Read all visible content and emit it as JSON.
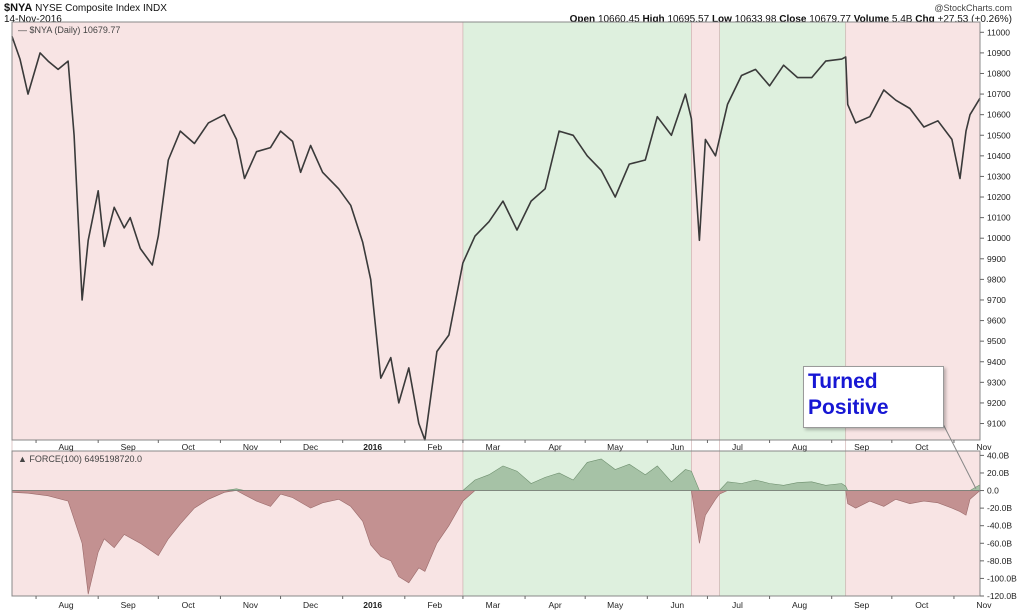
{
  "header": {
    "symbol": "$NYA",
    "name": "NYSE Composite Index",
    "exchange": "INDX",
    "date": "14-Nov-2016",
    "credit": "@StockCharts.com",
    "open_label": "Open",
    "open": "10660.45",
    "high_label": "High",
    "high": "10695.57",
    "low_label": "Low",
    "low": "10633.98",
    "close_label": "Close",
    "close": "10679.77",
    "volume_label": "Volume",
    "volume": "5.4B",
    "chg_label": "Chg",
    "chg": "+27.53 (+0.26%)"
  },
  "annotation": {
    "line1": "Turned",
    "line2": "Positive"
  },
  "colors": {
    "red_band": "#f8e4e4",
    "green_band": "#def0de",
    "price_line": "#3a3a3a",
    "force_neg": "#c39191",
    "force_pos": "#a6c2a6",
    "callout_text": "#1717d4"
  },
  "chart_data": [
    {
      "type": "line",
      "legend": "$NYA (Daily) 10679.77",
      "x_tick_labels": [
        "Aug",
        "Sep",
        "Oct",
        "Nov",
        "Dec",
        "2016",
        "Feb",
        "Mar",
        "Apr",
        "May",
        "Jun",
        "Jul",
        "Aug",
        "Sep",
        "Oct",
        "Nov"
      ],
      "y_ticks": [
        9100,
        9200,
        9300,
        9400,
        9500,
        9600,
        9700,
        9800,
        9900,
        10000,
        10100,
        10200,
        10300,
        10400,
        10500,
        10600,
        10700,
        10800,
        10900,
        11000
      ],
      "ylim": [
        9020,
        11050
      ],
      "date_range": [
        "2015-07-20",
        "2016-11-14"
      ],
      "shaded_regimes": [
        {
          "start": "2015-07-20",
          "end": "2016-03-01",
          "regime": "negative"
        },
        {
          "start": "2016-03-01",
          "end": "2016-06-23",
          "regime": "positive"
        },
        {
          "start": "2016-06-23",
          "end": "2016-07-07",
          "regime": "negative"
        },
        {
          "start": "2016-07-07",
          "end": "2016-09-08",
          "regime": "positive"
        },
        {
          "start": "2016-09-08",
          "end": "2016-11-14",
          "regime": "negative"
        }
      ],
      "series": [
        {
          "x": [
            "2015-07-20",
            "2015-07-24",
            "2015-07-28",
            "2015-08-03",
            "2015-08-07",
            "2015-08-12",
            "2015-08-17",
            "2015-08-20",
            "2015-08-24",
            "2015-08-27",
            "2015-09-01",
            "2015-09-04",
            "2015-09-09",
            "2015-09-14",
            "2015-09-17",
            "2015-09-22",
            "2015-09-28",
            "2015-10-01",
            "2015-10-06",
            "2015-10-12",
            "2015-10-19",
            "2015-10-26",
            "2015-11-03",
            "2015-11-09",
            "2015-11-13",
            "2015-11-19",
            "2015-11-26",
            "2015-12-01",
            "2015-12-07",
            "2015-12-11",
            "2015-12-16",
            "2015-12-22",
            "2015-12-30",
            "2016-01-05",
            "2016-01-11",
            "2016-01-15",
            "2016-01-20",
            "2016-01-25",
            "2016-01-29",
            "2016-02-03",
            "2016-02-08",
            "2016-02-11",
            "2016-02-17",
            "2016-02-23",
            "2016-03-01",
            "2016-03-07",
            "2016-03-14",
            "2016-03-21",
            "2016-03-28",
            "2016-04-04",
            "2016-04-11",
            "2016-04-18",
            "2016-04-25",
            "2016-05-02",
            "2016-05-09",
            "2016-05-16",
            "2016-05-23",
            "2016-05-31",
            "2016-06-06",
            "2016-06-13",
            "2016-06-20",
            "2016-06-23",
            "2016-06-27",
            "2016-06-30",
            "2016-07-05",
            "2016-07-11",
            "2016-07-18",
            "2016-07-25",
            "2016-08-01",
            "2016-08-08",
            "2016-08-15",
            "2016-08-22",
            "2016-08-29",
            "2016-09-06",
            "2016-09-08",
            "2016-09-09",
            "2016-09-13",
            "2016-09-20",
            "2016-09-27",
            "2016-10-03",
            "2016-10-10",
            "2016-10-17",
            "2016-10-24",
            "2016-10-31",
            "2016-11-04",
            "2016-11-07",
            "2016-11-09",
            "2016-11-14"
          ],
          "y": [
            10980,
            10870,
            10700,
            10900,
            10860,
            10820,
            10860,
            10500,
            9700,
            9990,
            10230,
            9960,
            10150,
            10050,
            10100,
            9950,
            9870,
            10010,
            10380,
            10520,
            10460,
            10560,
            10600,
            10480,
            10290,
            10420,
            10440,
            10520,
            10470,
            10320,
            10450,
            10320,
            10240,
            10160,
            9980,
            9800,
            9320,
            9420,
            9200,
            9370,
            9100,
            9020,
            9450,
            9530,
            9880,
            10010,
            10080,
            10180,
            10040,
            10180,
            10240,
            10520,
            10500,
            10400,
            10330,
            10200,
            10360,
            10380,
            10590,
            10500,
            10700,
            10580,
            9990,
            10480,
            10400,
            10650,
            10790,
            10820,
            10740,
            10840,
            10780,
            10780,
            10860,
            10870,
            10880,
            10650,
            10560,
            10590,
            10720,
            10670,
            10630,
            10540,
            10570,
            10480,
            10290,
            10520,
            10600,
            10679.77
          ]
        }
      ]
    },
    {
      "type": "area",
      "legend": "FORCE(100) 6495198720.0",
      "x_tick_labels": [
        "Aug",
        "Sep",
        "Oct",
        "Nov",
        "Dec",
        "2016",
        "Feb",
        "Mar",
        "Apr",
        "May",
        "Jun",
        "Jul",
        "Aug",
        "Sep",
        "Oct",
        "Nov"
      ],
      "y_ticks": [
        "40.0B",
        "20.0B",
        "0.0",
        "-20.0B",
        "-40.0B",
        "-60.0B",
        "-80.0B",
        "-100.0B",
        "-120.0B"
      ],
      "ylim": [
        -120,
        45
      ],
      "y_unit": "B",
      "series": [
        {
          "x": [
            "2015-07-20",
            "2015-07-28",
            "2015-08-07",
            "2015-08-17",
            "2015-08-24",
            "2015-08-27",
            "2015-09-01",
            "2015-09-04",
            "2015-09-09",
            "2015-09-14",
            "2015-09-22",
            "2015-10-01",
            "2015-10-06",
            "2015-10-12",
            "2015-10-19",
            "2015-10-26",
            "2015-11-03",
            "2015-11-09",
            "2015-11-13",
            "2015-11-19",
            "2015-11-26",
            "2015-12-01",
            "2015-12-07",
            "2015-12-16",
            "2015-12-22",
            "2015-12-30",
            "2016-01-05",
            "2016-01-11",
            "2016-01-15",
            "2016-01-20",
            "2016-01-25",
            "2016-01-29",
            "2016-02-03",
            "2016-02-08",
            "2016-02-11",
            "2016-02-17",
            "2016-02-23",
            "2016-03-01",
            "2016-03-07",
            "2016-03-14",
            "2016-03-21",
            "2016-03-28",
            "2016-04-04",
            "2016-04-11",
            "2016-04-18",
            "2016-04-25",
            "2016-05-02",
            "2016-05-09",
            "2016-05-16",
            "2016-05-23",
            "2016-05-31",
            "2016-06-06",
            "2016-06-13",
            "2016-06-20",
            "2016-06-23",
            "2016-06-27",
            "2016-06-30",
            "2016-07-05",
            "2016-07-07",
            "2016-07-11",
            "2016-07-18",
            "2016-07-25",
            "2016-08-01",
            "2016-08-08",
            "2016-08-15",
            "2016-08-22",
            "2016-08-29",
            "2016-09-06",
            "2016-09-08",
            "2016-09-09",
            "2016-09-13",
            "2016-09-20",
            "2016-09-27",
            "2016-10-03",
            "2016-10-10",
            "2016-10-17",
            "2016-10-24",
            "2016-10-31",
            "2016-11-04",
            "2016-11-07",
            "2016-11-09",
            "2016-11-14"
          ],
          "y": [
            -2,
            -3,
            -6,
            -12,
            -60,
            -118,
            -70,
            -55,
            -65,
            -50,
            -60,
            -74,
            -55,
            -38,
            -20,
            -10,
            -2,
            2,
            -5,
            -12,
            -18,
            -4,
            -8,
            -20,
            -14,
            -10,
            -18,
            -35,
            -62,
            -75,
            -80,
            -98,
            -105,
            -88,
            -92,
            -60,
            -40,
            -12,
            12,
            18,
            28,
            22,
            8,
            15,
            20,
            12,
            32,
            36,
            24,
            30,
            18,
            28,
            10,
            24,
            22,
            -60,
            -28,
            -10,
            -4,
            10,
            8,
            12,
            8,
            6,
            9,
            10,
            6,
            8,
            5,
            -15,
            -20,
            -12,
            -18,
            -10,
            -15,
            -12,
            -14,
            -20,
            -24,
            -28,
            -10,
            6.5
          ]
        }
      ]
    }
  ]
}
